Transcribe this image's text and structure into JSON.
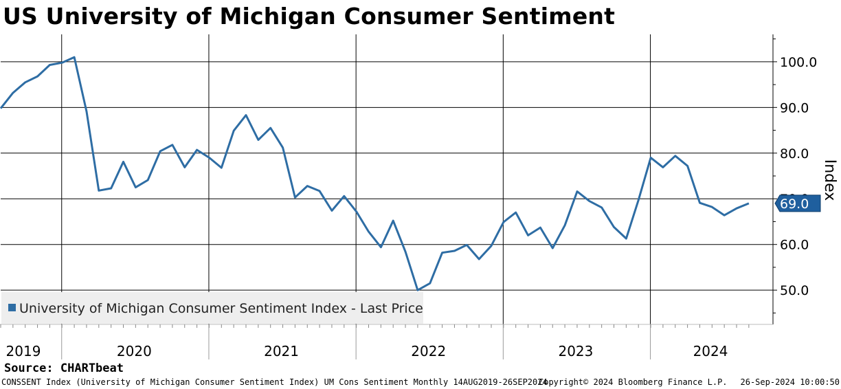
{
  "title": "US University of Michigan Consumer Sentiment",
  "source": "Source: CHARTbeat",
  "footer": {
    "description": "CONSSENT Index (University of Michigan Consumer Sentiment Index) UM Cons Sentiment  Monthly 14AUG2019-26SEP2024",
    "copyright": "Copyright© 2024 Bloomberg Finance L.P.",
    "timestamp": "26-Sep-2024 10:00:50"
  },
  "colors": {
    "series": "#2e6da4",
    "grid": "#000000",
    "legend_bg": "#eeeeee",
    "last_label_bg": "#1f5f9e"
  },
  "chart_data": {
    "type": "line",
    "title": "US University of Michigan Consumer Sentiment",
    "ylabel": "Index",
    "ylim": [
      42.5,
      106
    ],
    "yticks": [
      50,
      60,
      70,
      80,
      90,
      100
    ],
    "ytick_labels": [
      "50.0",
      "60.0",
      "70.0",
      "80.0",
      "90.0",
      "100.0"
    ],
    "xlim": [
      "2019-08",
      "2024-09"
    ],
    "year_labels": [
      "2019",
      "2020",
      "2021",
      "2022",
      "2023",
      "2024"
    ],
    "year_dividers": [
      "2020-01",
      "2021-01",
      "2022-01",
      "2023-01",
      "2024-01"
    ],
    "legend": "University of Michigan Consumer Sentiment Index - Last Price",
    "legend_position": "bottom-left",
    "last_value_label": "69.0",
    "grid": true,
    "series": [
      {
        "name": "University of Michigan Consumer Sentiment Index - Last Price",
        "x": [
          "2019-08",
          "2019-09",
          "2019-10",
          "2019-11",
          "2019-12",
          "2020-01",
          "2020-02",
          "2020-03",
          "2020-04",
          "2020-05",
          "2020-06",
          "2020-07",
          "2020-08",
          "2020-09",
          "2020-10",
          "2020-11",
          "2020-12",
          "2021-01",
          "2021-02",
          "2021-03",
          "2021-04",
          "2021-05",
          "2021-06",
          "2021-07",
          "2021-08",
          "2021-09",
          "2021-10",
          "2021-11",
          "2021-12",
          "2022-01",
          "2022-02",
          "2022-03",
          "2022-04",
          "2022-05",
          "2022-06",
          "2022-07",
          "2022-08",
          "2022-09",
          "2022-10",
          "2022-11",
          "2022-12",
          "2023-01",
          "2023-02",
          "2023-03",
          "2023-04",
          "2023-05",
          "2023-06",
          "2023-07",
          "2023-08",
          "2023-09",
          "2023-10",
          "2023-11",
          "2023-12",
          "2024-01",
          "2024-02",
          "2024-03",
          "2024-04",
          "2024-05",
          "2024-06",
          "2024-07",
          "2024-08",
          "2024-09"
        ],
        "values": [
          89.8,
          93.2,
          95.5,
          96.8,
          99.3,
          99.8,
          101.0,
          89.1,
          71.8,
          72.3,
          78.1,
          72.5,
          74.1,
          80.4,
          81.8,
          76.9,
          80.7,
          79.0,
          76.8,
          84.9,
          88.3,
          82.9,
          85.5,
          81.2,
          70.3,
          72.8,
          71.7,
          67.4,
          70.6,
          67.2,
          62.8,
          59.4,
          65.2,
          58.4,
          50.0,
          51.5,
          58.2,
          58.6,
          59.9,
          56.8,
          59.7,
          64.9,
          67.0,
          62.0,
          63.7,
          59.2,
          64.2,
          71.6,
          69.5,
          68.1,
          63.8,
          61.3,
          69.7,
          79.0,
          76.9,
          79.4,
          77.2,
          69.1,
          68.2,
          66.4,
          67.9,
          69.0
        ]
      }
    ]
  }
}
